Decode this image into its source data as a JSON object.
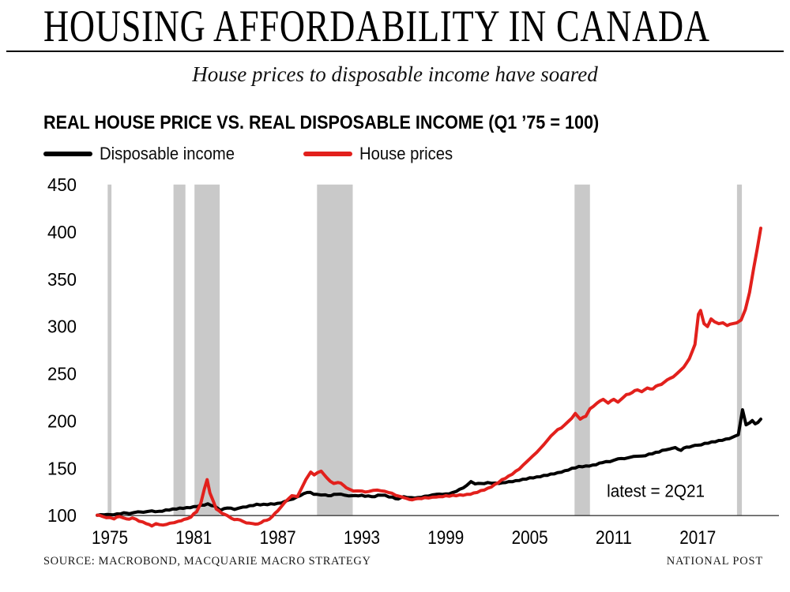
{
  "header": {
    "title": "HOUSING AFFORDABILITY IN CANADA",
    "subtitle": "House prices to disposable income have soared"
  },
  "chart": {
    "title": "REAL HOUSE PRICE VS. REAL DISPOSABLE INCOME (Q1 ’75 = 100)",
    "legend": [
      {
        "label": "Disposable income",
        "color": "#000000"
      },
      {
        "label": "House prices",
        "color": "#e2201c"
      }
    ]
  },
  "chart_data": {
    "type": "line",
    "title": "REAL HOUSE PRICE VS. REAL DISPOSABLE INCOME (Q1 '75 = 100)",
    "x_range": [
      1974.1,
      2021.5
    ],
    "y_range": [
      88,
      450
    ],
    "y_ticks": [
      450,
      400,
      350,
      300,
      250,
      200,
      150,
      100
    ],
    "x_ticks": [
      1975,
      1981,
      1987,
      1993,
      1999,
      2005,
      2011,
      2017
    ],
    "grid": false,
    "legend_position": "top-left",
    "band_color": "#c9c9c9",
    "axis_color": "#3c3c3c",
    "annotation": {
      "text": "latest = 2Q21",
      "year": 2014.0,
      "value": 126.5
    },
    "recession_bands": [
      [
        1974.85,
        1975.12
      ],
      [
        1979.55,
        1980.4
      ],
      [
        1981.05,
        1982.85
      ],
      [
        1989.8,
        1992.35
      ],
      [
        2008.2,
        2009.3
      ],
      [
        2019.8,
        2020.15
      ]
    ],
    "series": [
      {
        "name": "Disposable income",
        "color": "#000000",
        "wiggle": 0.7,
        "points": [
          [
            1974.1,
            100.3
          ],
          [
            1974.6,
            100.8
          ],
          [
            1975,
            101
          ],
          [
            1975.5,
            101.8
          ],
          [
            1976,
            103
          ],
          [
            1976.4,
            102
          ],
          [
            1977,
            104
          ],
          [
            1977.4,
            103.5
          ],
          [
            1978,
            105
          ],
          [
            1978.5,
            104.5
          ],
          [
            1979,
            106
          ],
          [
            1979.5,
            107
          ],
          [
            1980,
            108
          ],
          [
            1980.5,
            108.5
          ],
          [
            1981,
            109.5
          ],
          [
            1981.5,
            111
          ],
          [
            1982,
            112.5
          ],
          [
            1982.5,
            110
          ],
          [
            1982.9,
            105.5
          ],
          [
            1983.4,
            108
          ],
          [
            1983.9,
            106.5
          ],
          [
            1984.5,
            109
          ],
          [
            1985,
            110.5
          ],
          [
            1985.5,
            112
          ],
          [
            1986,
            112
          ],
          [
            1986.5,
            112.5
          ],
          [
            1987,
            113
          ],
          [
            1987.5,
            115
          ],
          [
            1988.1,
            117.5
          ],
          [
            1988.6,
            121
          ],
          [
            1989.1,
            124.5
          ],
          [
            1989.8,
            122.5
          ],
          [
            1990.4,
            122
          ],
          [
            1990.8,
            121
          ],
          [
            1991.2,
            122.5
          ],
          [
            1991.8,
            121.5
          ],
          [
            1992.3,
            121
          ],
          [
            1993,
            121.5
          ],
          [
            1993.7,
            120
          ],
          [
            1994.4,
            121.5
          ],
          [
            1995.2,
            119.5
          ],
          [
            1995.6,
            117.5
          ],
          [
            1996,
            120
          ],
          [
            1996.8,
            118.5
          ],
          [
            1997.5,
            120.5
          ],
          [
            1998.3,
            122.5
          ],
          [
            1999,
            123
          ],
          [
            1999.5,
            124.5
          ],
          [
            2000,
            128
          ],
          [
            2000.5,
            132
          ],
          [
            2000.8,
            136
          ],
          [
            2001.1,
            133.5
          ],
          [
            2001.5,
            134
          ],
          [
            2002,
            135
          ],
          [
            2002.8,
            134
          ],
          [
            2003.5,
            136
          ],
          [
            2004,
            137
          ],
          [
            2004.5,
            138.5
          ],
          [
            2005,
            140
          ],
          [
            2005.5,
            141
          ],
          [
            2006,
            142.5
          ],
          [
            2006.5,
            144
          ],
          [
            2007,
            145.5
          ],
          [
            2007.5,
            147.5
          ],
          [
            2008,
            150
          ],
          [
            2008.5,
            152
          ],
          [
            2009,
            152.5
          ],
          [
            2009.5,
            153.5
          ],
          [
            2010.2,
            156
          ],
          [
            2011,
            158.5
          ],
          [
            2011.3,
            160
          ],
          [
            2012,
            161
          ],
          [
            2012.4,
            162.5
          ],
          [
            2013,
            163
          ],
          [
            2013.5,
            165
          ],
          [
            2014,
            167
          ],
          [
            2014.7,
            169.5
          ],
          [
            2015,
            170.5
          ],
          [
            2015.4,
            172
          ],
          [
            2015.8,
            169
          ],
          [
            2016.2,
            172.5
          ],
          [
            2016.6,
            173.5
          ],
          [
            2017,
            174.5
          ],
          [
            2017.5,
            176.5
          ],
          [
            2018,
            178
          ],
          [
            2018.5,
            179.5
          ],
          [
            2019,
            181
          ],
          [
            2019.5,
            183
          ],
          [
            2019.9,
            185.5
          ],
          [
            2020.2,
            212
          ],
          [
            2020.45,
            196
          ],
          [
            2020.7,
            198
          ],
          [
            2020.9,
            200.5
          ],
          [
            2021.1,
            197
          ],
          [
            2021.3,
            198.5
          ],
          [
            2021.5,
            202
          ]
        ]
      },
      {
        "name": "House prices",
        "color": "#e2201c",
        "wiggle": 0.8,
        "points": [
          [
            1974.1,
            100.5
          ],
          [
            1974.5,
            99
          ],
          [
            1975,
            98
          ],
          [
            1975.3,
            96.5
          ],
          [
            1975.7,
            99
          ],
          [
            1976.2,
            96.5
          ],
          [
            1976.6,
            97.5
          ],
          [
            1977.1,
            94
          ],
          [
            1977.6,
            91.5
          ],
          [
            1978,
            89
          ],
          [
            1978.3,
            91.5
          ],
          [
            1978.8,
            90
          ],
          [
            1979.3,
            92
          ],
          [
            1979.9,
            94
          ],
          [
            1980.3,
            96
          ],
          [
            1980.8,
            98.5
          ],
          [
            1981.2,
            104
          ],
          [
            1981.5,
            113
          ],
          [
            1981.75,
            128
          ],
          [
            1981.95,
            138
          ],
          [
            1982.15,
            124
          ],
          [
            1982.4,
            115
          ],
          [
            1982.6,
            107
          ],
          [
            1983,
            102.5
          ],
          [
            1983.4,
            100
          ],
          [
            1983.7,
            97
          ],
          [
            1984.1,
            96
          ],
          [
            1984.5,
            94
          ],
          [
            1985,
            92
          ],
          [
            1985.4,
            91
          ],
          [
            1985.8,
            92.5
          ],
          [
            1986.2,
            95
          ],
          [
            1986.6,
            99
          ],
          [
            1987,
            105
          ],
          [
            1987.5,
            114
          ],
          [
            1988,
            121
          ],
          [
            1988.4,
            120
          ],
          [
            1989,
            138
          ],
          [
            1989.35,
            146
          ],
          [
            1989.6,
            143
          ],
          [
            1990.1,
            147
          ],
          [
            1990.5,
            140
          ],
          [
            1991,
            134
          ],
          [
            1991.3,
            135
          ],
          [
            1991.7,
            132
          ],
          [
            1992.1,
            128
          ],
          [
            1992.4,
            126
          ],
          [
            1993,
            126
          ],
          [
            1993.5,
            125.5
          ],
          [
            1994.1,
            127
          ],
          [
            1994.9,
            124.5
          ],
          [
            1995.4,
            121.5
          ],
          [
            1996,
            119
          ],
          [
            1996.4,
            117
          ],
          [
            1996.8,
            117.5
          ],
          [
            1997.5,
            119
          ],
          [
            1998.3,
            119.5
          ],
          [
            1999,
            121
          ],
          [
            1999.5,
            121.5
          ],
          [
            2000,
            122
          ],
          [
            2000.5,
            122.5
          ],
          [
            2001,
            124
          ],
          [
            2001.5,
            126.5
          ],
          [
            2002,
            129
          ],
          [
            2002.5,
            133
          ],
          [
            2003,
            138
          ],
          [
            2003.5,
            142
          ],
          [
            2004,
            147
          ],
          [
            2004.5,
            153
          ],
          [
            2005,
            160
          ],
          [
            2005.5,
            167
          ],
          [
            2006,
            175
          ],
          [
            2006.5,
            184
          ],
          [
            2007,
            191
          ],
          [
            2007.5,
            196
          ],
          [
            2008,
            203
          ],
          [
            2008.25,
            208
          ],
          [
            2008.6,
            202
          ],
          [
            2009,
            205
          ],
          [
            2009.3,
            213
          ],
          [
            2009.8,
            219
          ],
          [
            2010.25,
            223
          ],
          [
            2010.6,
            219
          ],
          [
            2011,
            223
          ],
          [
            2011.3,
            220
          ],
          [
            2011.9,
            228
          ],
          [
            2012.3,
            230
          ],
          [
            2012.7,
            233
          ],
          [
            2013,
            231
          ],
          [
            2013.4,
            235
          ],
          [
            2013.8,
            234
          ],
          [
            2014.2,
            238
          ],
          [
            2014.6,
            241
          ],
          [
            2015,
            245
          ],
          [
            2015.5,
            250
          ],
          [
            2016,
            257
          ],
          [
            2016.4,
            266
          ],
          [
            2016.8,
            281
          ],
          [
            2017.05,
            313
          ],
          [
            2017.2,
            317
          ],
          [
            2017.45,
            303
          ],
          [
            2017.7,
            300
          ],
          [
            2017.95,
            308
          ],
          [
            2018.2,
            305
          ],
          [
            2018.5,
            303
          ],
          [
            2018.8,
            304
          ],
          [
            2019.1,
            301
          ],
          [
            2019.5,
            303
          ],
          [
            2019.8,
            304
          ],
          [
            2020.1,
            307
          ],
          [
            2020.4,
            318
          ],
          [
            2020.7,
            336
          ],
          [
            2021,
            362
          ],
          [
            2021.25,
            382
          ],
          [
            2021.5,
            404
          ]
        ]
      }
    ]
  },
  "footer": {
    "source": "SOURCE: MACROBOND, MACQUARIE MACRO STRATEGY",
    "credit": "NATIONAL POST"
  }
}
